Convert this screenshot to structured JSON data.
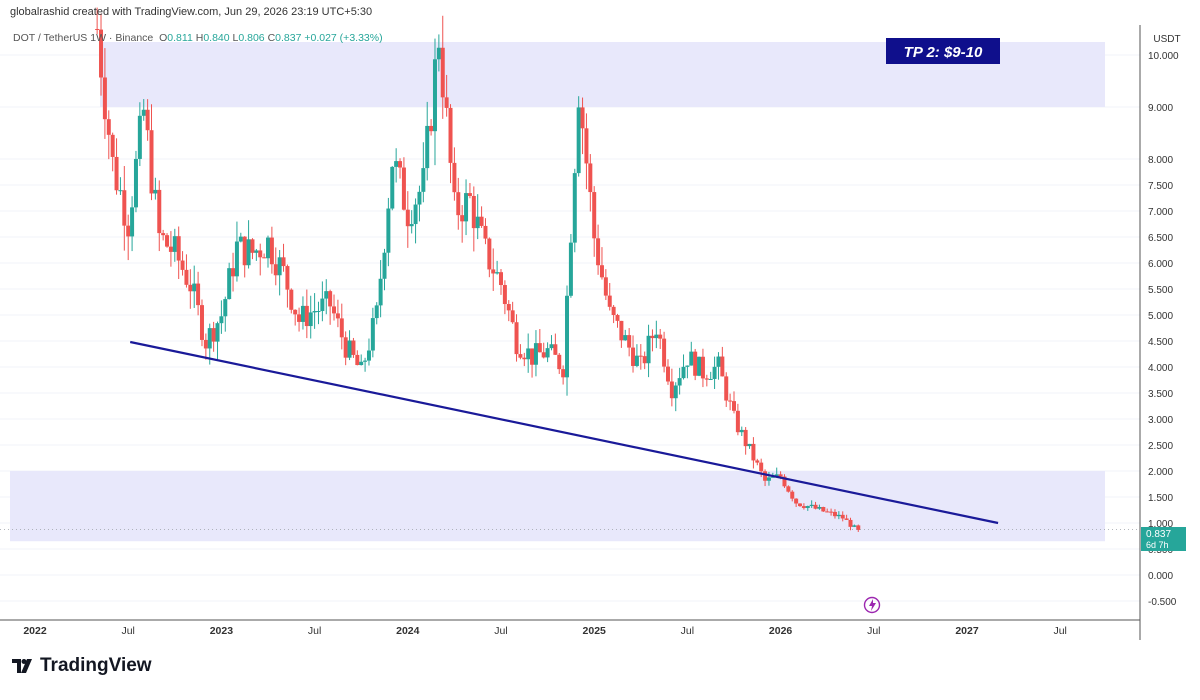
{
  "header": {
    "credit": "globalrashid created with TradingView.com, Jun 29, 2026 23:19 UTC+5:30"
  },
  "symbol": {
    "pair": "DOT / TetherUS",
    "interval": "1W",
    "exchange": "Binance",
    "open_label": "O",
    "open": "0.811",
    "high_label": "H",
    "high": "0.840",
    "low_label": "L",
    "low": "0.806",
    "close_label": "C",
    "close": "0.837",
    "change": "+0.027 (+3.33%)"
  },
  "footer": {
    "brand": "TradingView",
    "logo_icon": "tradingview-logo-icon"
  },
  "colors": {
    "up": "#26a69a",
    "down": "#ef5350",
    "zone": "#e8e8fb",
    "trendline": "#1a1a99",
    "tp_label_bg": "#0f0f8c",
    "price_label_bg": "#26a69a"
  },
  "chart_data": {
    "type": "candlestick",
    "ylabel": "USDT",
    "ylim": [
      -0.8,
      11.0
    ],
    "y_ticks": [
      "10.000",
      "9.000",
      "8.000",
      "7.500",
      "7.000",
      "6.500",
      "6.000",
      "5.500",
      "5.000",
      "4.500",
      "4.000",
      "3.500",
      "3.000",
      "2.500",
      "2.000",
      "1.500",
      "1.000",
      "0.500",
      "0.000",
      "-0.500"
    ],
    "x_ticks": [
      "2022",
      "Jul",
      "2023",
      "Jul",
      "2024",
      "Jul",
      "2025",
      "Jul",
      "2026",
      "Jul",
      "2027",
      "Jul"
    ],
    "last_price": {
      "value": 0.837,
      "label": "0.837",
      "countdown": "6d 7h"
    },
    "zones": [
      {
        "from": 9.0,
        "to": 10.25
      },
      {
        "from": 0.65,
        "to": 2.0
      }
    ],
    "annotations": [
      {
        "text": "TP 2: $9-10"
      }
    ],
    "trendline": {
      "x": [
        "2022-07",
        "2027-03"
      ],
      "y": [
        4.5,
        1.0
      ]
    },
    "price_path": [
      [
        "2022-05",
        10.5
      ],
      [
        "2022-06",
        7.9
      ],
      [
        "2022-07",
        6.8
      ],
      [
        "2022-08",
        8.9
      ],
      [
        "2022-09",
        6.5
      ],
      [
        "2022-10",
        6.2
      ],
      [
        "2022-11",
        5.6
      ],
      [
        "2022-12",
        4.5
      ],
      [
        "2023-01",
        5.0
      ],
      [
        "2023-02",
        6.3
      ],
      [
        "2023-03",
        6.2
      ],
      [
        "2023-04",
        6.4
      ],
      [
        "2023-05",
        5.8
      ],
      [
        "2023-06",
        4.9
      ],
      [
        "2023-07",
        5.1
      ],
      [
        "2023-08",
        5.2
      ],
      [
        "2023-09",
        4.4
      ],
      [
        "2023-10",
        3.9
      ],
      [
        "2023-11",
        5.0
      ],
      [
        "2023-12",
        8.0
      ],
      [
        "2024-01",
        7.0
      ],
      [
        "2024-02",
        7.5
      ],
      [
        "2024-03",
        10.4
      ],
      [
        "2024-04",
        7.0
      ],
      [
        "2024-05",
        7.2
      ],
      [
        "2024-06",
        6.2
      ],
      [
        "2024-07",
        5.6
      ],
      [
        "2024-08",
        4.5
      ],
      [
        "2024-09",
        4.2
      ],
      [
        "2024-10",
        4.3
      ],
      [
        "2024-11",
        4.0
      ],
      [
        "2024-12",
        9.4
      ],
      [
        "2025-01",
        6.5
      ],
      [
        "2025-02",
        5.0
      ],
      [
        "2025-03",
        4.5
      ],
      [
        "2025-04",
        4.0
      ],
      [
        "2025-05",
        4.8
      ],
      [
        "2025-06",
        3.6
      ],
      [
        "2025-07",
        4.2
      ],
      [
        "2025-08",
        3.9
      ],
      [
        "2025-09",
        4.0
      ],
      [
        "2025-10",
        3.0
      ],
      [
        "2025-11",
        2.4
      ],
      [
        "2025-12",
        1.8
      ],
      [
        "2026-01",
        1.9
      ],
      [
        "2026-02",
        1.4
      ],
      [
        "2026-03",
        1.3
      ],
      [
        "2026-04",
        1.2
      ],
      [
        "2026-05",
        1.1
      ],
      [
        "2026-06",
        0.84
      ]
    ]
  }
}
